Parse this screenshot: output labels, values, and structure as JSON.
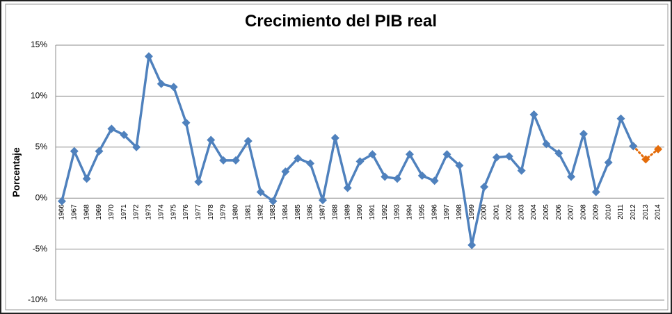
{
  "chart_data": {
    "type": "line",
    "title": "Crecimiento del PIB real",
    "y_label": "Porcentaje",
    "categories": [
      "1966",
      "1967",
      "1968",
      "1969",
      "1970",
      "1971",
      "1972",
      "1973",
      "1974",
      "1975",
      "1976",
      "1977",
      "1978",
      "1979",
      "1980",
      "1981",
      "1982",
      "1983",
      "1984",
      "1985",
      "1986",
      "1987",
      "1988",
      "1989",
      "1990",
      "1991",
      "1992",
      "1993",
      "1994",
      "1995",
      "1996",
      "1997",
      "1998",
      "1999",
      "2000",
      "2001",
      "2002",
      "2003",
      "2004",
      "2005",
      "2006",
      "2007",
      "2008",
      "2009",
      "2010",
      "2011",
      "2012",
      "2013",
      "2014"
    ],
    "series": [
      {
        "color": "#4f81bd",
        "dash": false,
        "values": [
          -0.3,
          4.6,
          1.9,
          4.6,
          6.8,
          6.2,
          5.0,
          13.9,
          11.2,
          10.9,
          7.4,
          1.6,
          5.7,
          3.7,
          3.7,
          5.6,
          0.6,
          -0.3,
          2.6,
          3.9,
          3.4,
          -0.2,
          5.9,
          1.0,
          3.6,
          4.3,
          2.1,
          1.9,
          4.3,
          2.2,
          1.7,
          4.3,
          3.2,
          -4.6,
          1.1,
          4.0,
          4.1,
          2.7,
          8.2,
          5.3,
          4.4,
          2.1,
          6.3,
          0.6,
          3.5,
          7.8,
          5.1,
          null,
          null
        ]
      },
      {
        "color": "#e46c0a",
        "dash": true,
        "values": [
          null,
          null,
          null,
          null,
          null,
          null,
          null,
          null,
          null,
          null,
          null,
          null,
          null,
          null,
          null,
          null,
          null,
          null,
          null,
          null,
          null,
          null,
          null,
          null,
          null,
          null,
          null,
          null,
          null,
          null,
          null,
          null,
          null,
          null,
          null,
          null,
          null,
          null,
          null,
          null,
          null,
          null,
          null,
          null,
          null,
          null,
          5.1,
          3.8,
          4.8
        ]
      }
    ],
    "ylim": [
      -10,
      15
    ],
    "yticks": [
      {
        "value": -10,
        "label": "-10%"
      },
      {
        "value": -5,
        "label": "-5%"
      },
      {
        "value": 0,
        "label": "0%"
      },
      {
        "value": 5,
        "label": "5%"
      },
      {
        "value": 10,
        "label": "10%"
      },
      {
        "value": 15,
        "label": "15%"
      }
    ],
    "grid": true
  }
}
